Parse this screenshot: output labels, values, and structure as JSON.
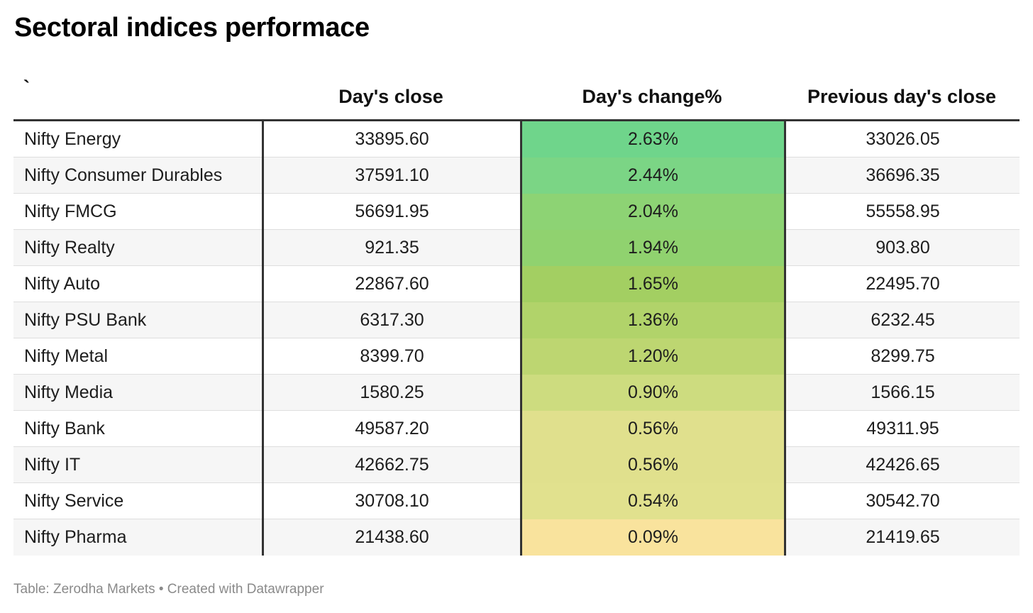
{
  "title": "Sectoral indices performace",
  "footer": "Table: Zerodha Markets • Created with Datawrapper",
  "chart_data": {
    "type": "table",
    "title": "Sectoral indices performace",
    "columns": [
      "`",
      "Day's close",
      "Day's change%",
      "Previous day's close"
    ],
    "rows": [
      {
        "index": "Nifty Energy",
        "close": "33895.60",
        "change": "2.63%",
        "prev": "33026.05",
        "change_value": 2.63,
        "color": "#6fd58b"
      },
      {
        "index": "Nifty Consumer Durables",
        "close": "37591.10",
        "change": "2.44%",
        "prev": "36696.35",
        "change_value": 2.44,
        "color": "#7bd585"
      },
      {
        "index": "Nifty FMCG",
        "close": "56691.95",
        "change": "2.04%",
        "prev": "55558.95",
        "change_value": 2.04,
        "color": "#8dd374"
      },
      {
        "index": "Nifty Realty",
        "close": "921.35",
        "change": "1.94%",
        "prev": "903.80",
        "change_value": 1.94,
        "color": "#90d26f"
      },
      {
        "index": "Nifty Auto",
        "close": "22867.60",
        "change": "1.65%",
        "prev": "22495.70",
        "change_value": 1.65,
        "color": "#a3cf62"
      },
      {
        "index": "Nifty PSU Bank",
        "close": "6317.30",
        "change": "1.36%",
        "prev": "6232.45",
        "change_value": 1.36,
        "color": "#b1d36a"
      },
      {
        "index": "Nifty Metal",
        "close": "8399.70",
        "change": "1.20%",
        "prev": "8299.75",
        "change_value": 1.2,
        "color": "#bdd671"
      },
      {
        "index": "Nifty Media",
        "close": "1580.25",
        "change": "0.90%",
        "prev": "1566.15",
        "change_value": 0.9,
        "color": "#cddc7f"
      },
      {
        "index": "Nifty Bank",
        "close": "49587.20",
        "change": "0.56%",
        "prev": "49311.95",
        "change_value": 0.56,
        "color": "#e0e08d"
      },
      {
        "index": "Nifty IT",
        "close": "42662.75",
        "change": "0.56%",
        "prev": "42426.65",
        "change_value": 0.56,
        "color": "#e0e08d"
      },
      {
        "index": "Nifty Service",
        "close": "30708.10",
        "change": "0.54%",
        "prev": "30542.70",
        "change_value": 0.54,
        "color": "#e1e18e"
      },
      {
        "index": "Nifty Pharma",
        "close": "21438.60",
        "change": "0.09%",
        "prev": "21419.65",
        "change_value": 0.09,
        "color": "#f9e39d"
      }
    ]
  }
}
